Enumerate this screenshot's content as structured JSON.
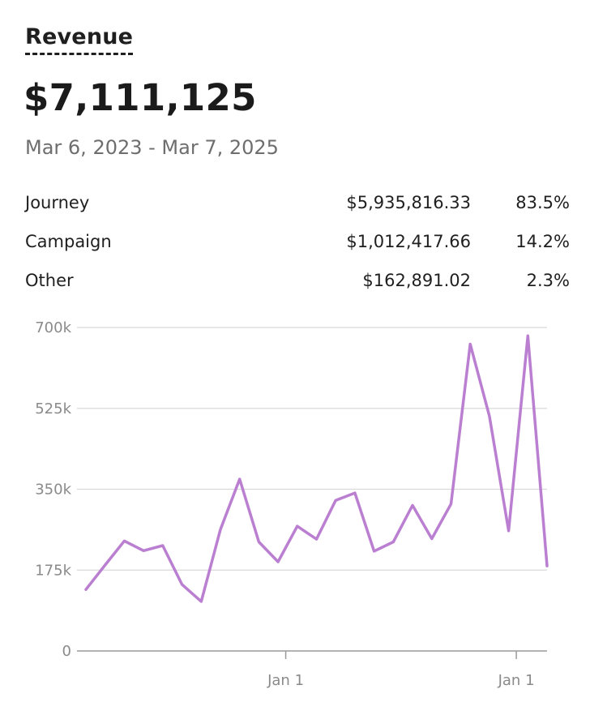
{
  "header": {
    "title": "Revenue",
    "total": "$7,111,125",
    "date_range": "Mar 6, 2023 - Mar 7, 2025"
  },
  "breakdown": [
    {
      "name": "Journey",
      "amount": "$5,935,816.33",
      "percent": "83.5%"
    },
    {
      "name": "Campaign",
      "amount": "$1,012,417.66",
      "percent": "14.2%"
    },
    {
      "name": "Other",
      "amount": "$162,891.02",
      "percent": "2.3%"
    }
  ],
  "colors": {
    "line": "#bb7fd1",
    "grid": "#d9d9d9",
    "axis": "#8a8a8a"
  },
  "chart_data": {
    "type": "line",
    "title": "",
    "xlabel": "",
    "ylabel": "",
    "ylim": [
      0,
      700000
    ],
    "yticks": [
      0,
      175000,
      350000,
      525000,
      700000
    ],
    "ytick_labels": [
      "0",
      "175k",
      "350k",
      "525k",
      "700k"
    ],
    "xtick_labels": [
      "Jan 1",
      "Jan 1"
    ],
    "grid": true,
    "legend": "none",
    "series": [
      {
        "values": [
          133000,
          186000,
          238000,
          217000,
          228000,
          144000,
          107000,
          263000,
          372000,
          236000,
          193000,
          270000,
          242000,
          326000,
          342000,
          216000,
          236000,
          315000,
          243000,
          318000,
          664000,
          508000,
          260000,
          682000,
          184000
        ]
      }
    ]
  }
}
